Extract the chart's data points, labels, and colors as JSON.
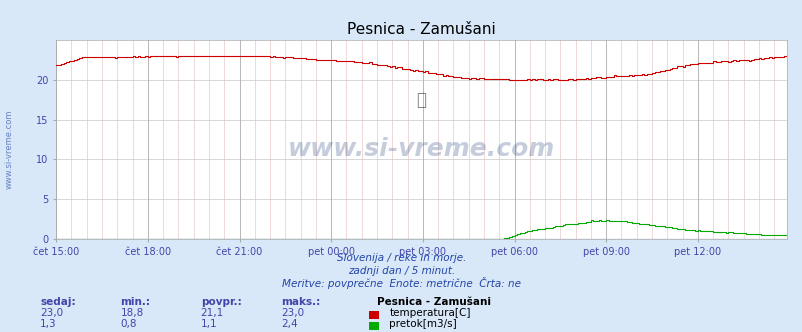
{
  "title": "Pesnica - Zamušani",
  "bg_color": "#d8e8f8",
  "plot_bg_color": "#ffffff",
  "grid_color_major": "#b0b0b0",
  "grid_color_minor": "#e8c8c8",
  "xlabel_color": "#4444aa",
  "title_color": "#000000",
  "x_tick_labels": [
    "čet 15:00",
    "čet 18:00",
    "čet 21:00",
    "pet 00:00",
    "pet 03:00",
    "pet 06:00",
    "pet 09:00",
    "pet 12:00"
  ],
  "x_tick_positions": [
    0,
    36,
    72,
    108,
    144,
    180,
    216,
    252
  ],
  "total_points": 288,
  "y_min": 0,
  "y_max": 25,
  "y_ticks": [
    0,
    5,
    10,
    15,
    20
  ],
  "temp_color": "#cc0000",
  "flow_color": "#00aa00",
  "watermark": "www.si-vreme.com",
  "footer_line1": "Slovenija / reke in morje.",
  "footer_line2": "zadnji dan / 5 minut.",
  "footer_line3": "Meritve: povprečne  Enote: metrične  Črta: ne",
  "legend_title": "Pesnica - Zamušani",
  "legend_labels": [
    "temperatura[C]",
    "pretok[m3/s]"
  ],
  "legend_colors": [
    "#cc0000",
    "#00aa00"
  ],
  "stats_headers": [
    "sedaj:",
    "min.:",
    "povpr.:",
    "maks.:"
  ],
  "stats_temp": [
    "23,0",
    "18,8",
    "21,1",
    "23,0"
  ],
  "stats_flow": [
    "1,3",
    "0,8",
    "1,1",
    "2,4"
  ],
  "stats_color": "#4444aa"
}
